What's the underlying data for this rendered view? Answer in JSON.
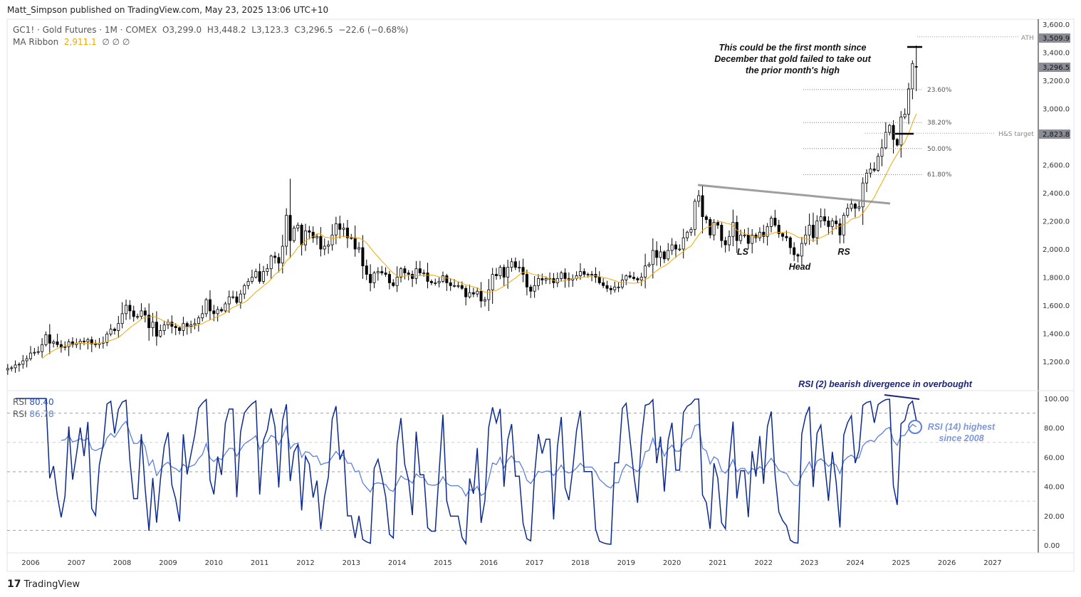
{
  "publisher_line": "Matt_Simpson published on TradingView.com, May 23, 2025 13:06 UTC+10",
  "legend": {
    "symbol": "GC1! · Gold Futures · 1M · COMEX",
    "o": "O3,299.0",
    "h": "H3,448.2",
    "l": "L3,123.3",
    "c": "C3,296.5",
    "chg": "−22.6 (−0.68%)",
    "ma_label": "MA Ribbon",
    "ma_value": "2,911.1",
    "ma_nulls": "∅  ∅  ∅"
  },
  "rsi_legend": {
    "label1": "RSI",
    "value1": "80.40",
    "label2": "RSI",
    "value2": "86.78"
  },
  "annotations": {
    "main_note": [
      "This could be the first month since",
      "December that gold failed to take out",
      "the prior month's high"
    ],
    "ls": "LS",
    "head": "Head",
    "rs": "RS",
    "rsi_note": "RSI (2) bearish divergence in overbought",
    "rsi14_note": [
      "RSI (14) highest",
      "since 2008"
    ],
    "ath": "ATH",
    "hs": "H&S target"
  },
  "fib_levels": [
    {
      "label": "23.60%",
      "price": 3135
    },
    {
      "label": "38.20%",
      "price": 2900
    },
    {
      "label": "50.00%",
      "price": 2715
    },
    {
      "label": "61.80%",
      "price": 2530
    }
  ],
  "price_labels": {
    "ath": "3,509.9",
    "last": "3,296.5",
    "hs": "2,823.8"
  },
  "brand": "TradingView",
  "colors": {
    "up": "#000000",
    "down": "#000000",
    "ma": "#f7a600",
    "rsi2": "#0d2a8f",
    "rsi14": "#5b7fdb",
    "accent_text": "#1a237e",
    "label_bg": "#8a8d96"
  },
  "chart_data": {
    "type": "candlestick",
    "start": "2005-07",
    "interval": "1M",
    "closes": [
      1150,
      1155,
      1175,
      1180,
      1205,
      1220,
      1260,
      1265,
      1270,
      1320,
      1390,
      1330,
      1340,
      1320,
      1300,
      1305,
      1340,
      1320,
      1330,
      1345,
      1340,
      1355,
      1325,
      1320,
      1330,
      1335,
      1395,
      1430,
      1420,
      1470,
      1540,
      1600,
      1560,
      1520,
      1520,
      1560,
      1530,
      1440,
      1480,
      1380,
      1420,
      1460,
      1480,
      1450,
      1440,
      1420,
      1470,
      1450,
      1460,
      1470,
      1510,
      1540,
      1640,
      1560,
      1540,
      1570,
      1560,
      1610,
      1660,
      1660,
      1620,
      1680,
      1740,
      1770,
      1800,
      1840,
      1770,
      1840,
      1860,
      1950,
      1940,
      1900,
      2020,
      2240,
      2060,
      2150,
      2170,
      2030,
      2130,
      2120,
      2080,
      2090,
      2000,
      2020,
      2030,
      2100,
      2180,
      2140,
      2150,
      2080,
      2080,
      2000,
      2010,
      1880,
      1820,
      1760,
      1830,
      1840,
      1830,
      1820,
      1760,
      1740,
      1800,
      1860,
      1830,
      1820,
      1790,
      1860,
      1830,
      1830,
      1770,
      1760,
      1760,
      1770,
      1810,
      1760,
      1740,
      1740,
      1740,
      1720,
      1660,
      1690,
      1680,
      1700,
      1630,
      1640,
      1710,
      1820,
      1810,
      1870,
      1800,
      1870,
      1910,
      1870,
      1870,
      1820,
      1730,
      1700,
      1740,
      1790,
      1780,
      1790,
      1790,
      1760,
      1790,
      1830,
      1790,
      1780,
      1790,
      1810,
      1840,
      1820,
      1820,
      1820,
      1800,
      1760,
      1740,
      1720,
      1710,
      1730,
      1730,
      1780,
      1810,
      1800,
      1790,
      1780,
      1800,
      1880,
      1890,
      1990,
      1940,
      1980,
      1930,
      1990,
      2030,
      2000,
      2000,
      2080,
      2120,
      2140,
      2340,
      2380,
      2230,
      2210,
      2100,
      2190,
      2170,
      2060,
      2030,
      2090,
      2190,
      2060,
      2100,
      2100,
      2040,
      2100,
      2080,
      2120,
      2090,
      2160,
      2220,
      2170,
      2110,
      2090,
      2080,
      2010,
      1960,
      1950,
      2040,
      2100,
      2170,
      2080,
      2200,
      2230,
      2200,
      2160,
      2200,
      2180,
      2100,
      2240,
      2290,
      2320,
      2290,
      2300,
      2470,
      2540,
      2570,
      2560,
      2660,
      2720,
      2830,
      2880,
      2780,
      2740,
      2940,
      2960,
      3140,
      3320,
      3296.5
    ],
    "last_bar": {
      "open": 3299.0,
      "high": 3448.2,
      "low": 3123.3,
      "close": 3296.5
    },
    "ath": 3509.9,
    "hs_target": 2823.8,
    "ma_last": 2911.1,
    "price_axis": {
      "ticks": [
        "3,600.0",
        "3,400.0",
        "3,200.0",
        "3,000.0",
        "2,600.0",
        "2,400.0",
        "2,200.0",
        "2,000.0",
        "1,800.0",
        "1,600.0",
        "1,400.0",
        "1,200.0"
      ],
      "values": [
        3600,
        3400,
        3200,
        3000,
        2600,
        2400,
        2200,
        2000,
        1800,
        1600,
        1400,
        1200
      ]
    },
    "x_axis": {
      "ticks": [
        "2006",
        "2007",
        "2008",
        "2009",
        "2010",
        "2011",
        "2012",
        "2013",
        "2014",
        "2015",
        "2016",
        "2017",
        "2018",
        "2019",
        "2020",
        "2021",
        "2022",
        "2023",
        "2024",
        "2025",
        "2026",
        "2027"
      ]
    },
    "rsi_axis": {
      "ticks": [
        "100.00",
        "80.00",
        "60.00",
        "40.00",
        "20.00",
        "0.00"
      ],
      "values": [
        100,
        80,
        60,
        40,
        20,
        0
      ],
      "dashed_levels": [
        90,
        70,
        50,
        30,
        10
      ]
    },
    "indicators": [
      "RSI (2)",
      "RSI (14)",
      "MA Ribbon"
    ],
    "grid": false
  }
}
